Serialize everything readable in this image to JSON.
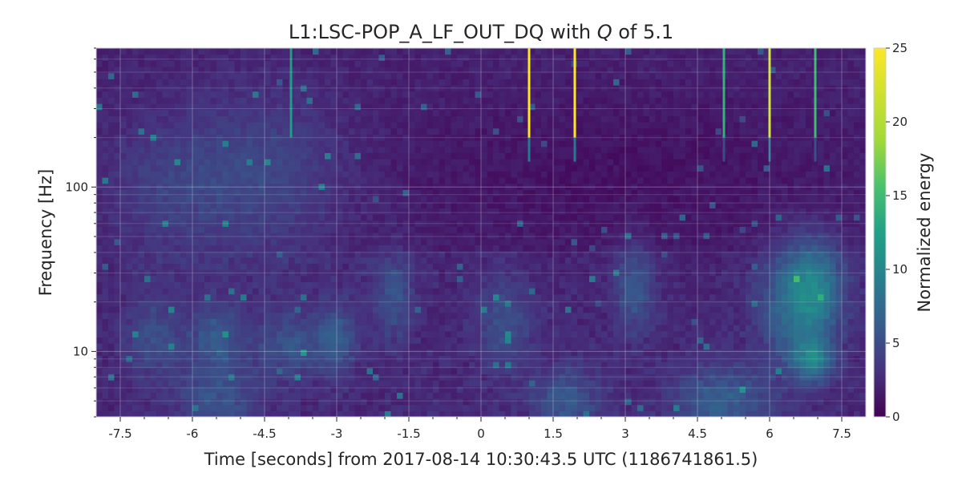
{
  "chart_data": {
    "type": "heatmap",
    "title": "L1:LSC-POP_A_LF_OUT_DQ with Q of 5.1",
    "title_parts": {
      "prefix": "L1:LSC-POP_A_LF_OUT_DQ with ",
      "q": "Q",
      "suffix": " of 5.1"
    },
    "xlabel": "Time [seconds] from 2017-08-14 10:30:43.5 UTC (1186741861.5)",
    "ylabel": "Frequency [Hz]",
    "colorbar_label": "Normalized energy",
    "colormap": "viridis",
    "xlim": [
      -8.0,
      8.0
    ],
    "ylim": [
      4,
      700
    ],
    "yscale": "log",
    "grid": true,
    "x_ticks": [
      -7.5,
      -6,
      -4.5,
      -3,
      -1.5,
      0,
      1.5,
      3,
      4.5,
      6,
      7.5
    ],
    "x_tick_labels": [
      "-7.5",
      "-6",
      "-4.5",
      "-3",
      "-1.5",
      "0",
      "1.5",
      "3",
      "4.5",
      "6",
      "7.5"
    ],
    "y_ticks": [
      10,
      100
    ],
    "y_tick_labels": [
      "10",
      "100"
    ],
    "clim": [
      0,
      25
    ],
    "colorbar_ticks": [
      0,
      5,
      10,
      15,
      20,
      25
    ],
    "colorbar_tick_labels": [
      "0",
      "5",
      "10",
      "15",
      "20",
      "25"
    ],
    "background_energy": 1.5,
    "features": [
      {
        "t": -4.5,
        "f": 120,
        "dt": 1.2,
        "dlogf": 0.35,
        "e": 2.5
      },
      {
        "t": -6.5,
        "f": 100,
        "dt": 1.0,
        "dlogf": 0.3,
        "e": 1.8
      },
      {
        "t": -5.5,
        "f": 12,
        "dt": 0.4,
        "dlogf": 0.15,
        "e": 3.5
      },
      {
        "t": -6.8,
        "f": 12,
        "dt": 0.4,
        "dlogf": 0.15,
        "e": 3.0
      },
      {
        "t": -4.0,
        "f": 11,
        "dt": 0.5,
        "dlogf": 0.15,
        "e": 3.0
      },
      {
        "t": -3.0,
        "f": 12,
        "dt": 0.3,
        "dlogf": 0.15,
        "e": 3.5
      },
      {
        "t": -1.8,
        "f": 22,
        "dt": 0.3,
        "dlogf": 0.2,
        "e": 3.0
      },
      {
        "t": 0.5,
        "f": 15,
        "dt": 0.4,
        "dlogf": 0.2,
        "e": 3.0
      },
      {
        "t": 3.2,
        "f": 25,
        "dt": 0.3,
        "dlogf": 0.2,
        "e": 3.5
      },
      {
        "t": 6.5,
        "f": 20,
        "dt": 0.5,
        "dlogf": 0.25,
        "e": 5.0
      },
      {
        "t": 7.0,
        "f": 25,
        "dt": 0.4,
        "dlogf": 0.2,
        "e": 5.0
      },
      {
        "t": 6.9,
        "f": 9,
        "dt": 0.3,
        "dlogf": 0.1,
        "e": 6.0
      },
      {
        "t": 5.0,
        "f": 5,
        "dt": 0.7,
        "dlogf": 0.15,
        "e": 4.0
      },
      {
        "t": 1.8,
        "f": 5,
        "dt": 0.5,
        "dlogf": 0.15,
        "e": 3.5
      },
      {
        "t": -5.5,
        "f": 5,
        "dt": 0.6,
        "dlogf": 0.15,
        "e": 3.0
      },
      {
        "t": 3.0,
        "f": 120,
        "dt": 3.5,
        "dlogf": 0.35,
        "e": -1.0
      }
    ],
    "glitches": [
      {
        "t": 1.0,
        "e": 25
      },
      {
        "t": 1.95,
        "e": 25
      },
      {
        "t": 6.0,
        "e": 22
      },
      {
        "t": 5.05,
        "e": 14
      },
      {
        "t": 6.95,
        "e": 15
      },
      {
        "t": -3.95,
        "e": 12
      }
    ]
  }
}
